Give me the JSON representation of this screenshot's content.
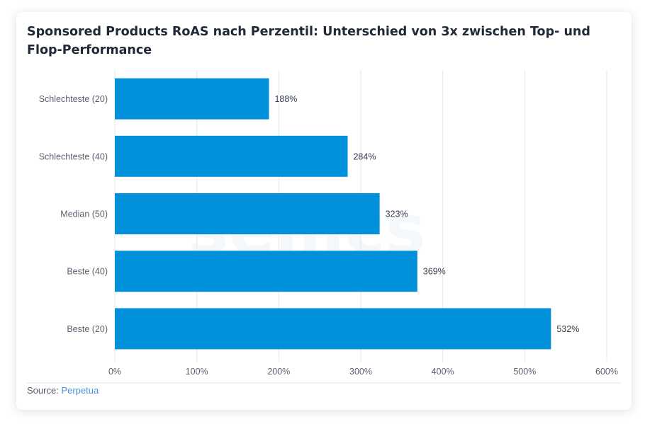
{
  "chart_data": {
    "type": "bar",
    "orientation": "horizontal",
    "title": "Sponsored Products RoAS nach Perzentil: Unterschied von 3x zwischen Top- und Flop-Performance",
    "categories": [
      "Schlechteste (20)",
      "Schlechteste (40)",
      "Median (50)",
      "Beste (40)",
      "Beste (20)"
    ],
    "values": [
      188,
      284,
      323,
      369,
      532
    ],
    "data_labels": [
      "188%",
      "284%",
      "323%",
      "369%",
      "532%"
    ],
    "xlim": [
      0,
      600
    ],
    "xticks": [
      0,
      100,
      200,
      300,
      400,
      500,
      600
    ],
    "xtick_labels": [
      "0%",
      "100%",
      "200%",
      "300%",
      "400%",
      "500%",
      "600%"
    ],
    "xlabel": "",
    "ylabel": "",
    "grid": "vertical",
    "bar_color": "#0091da",
    "watermark": "sellics"
  },
  "source": {
    "label": "Source:",
    "link_text": "Perpetua"
  },
  "colors": {
    "bar": "#0091da",
    "gridline": "#e3e6ea",
    "tick_text": "#5a6270",
    "source_link": "#4a90d9"
  }
}
